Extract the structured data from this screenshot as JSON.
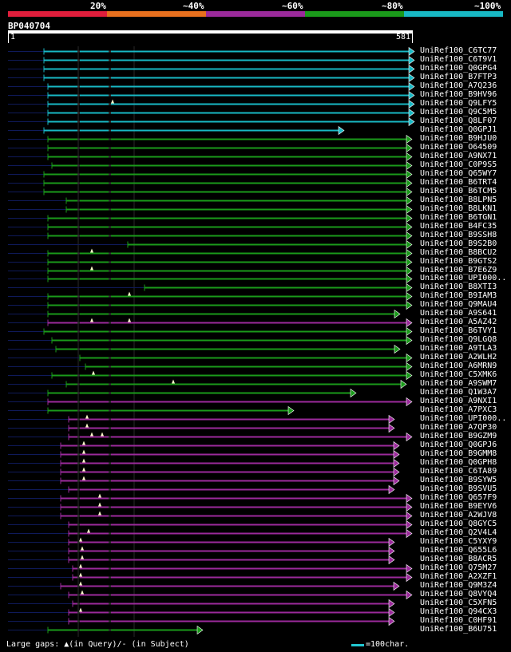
{
  "legend": {
    "labels": [
      "20%",
      "~40%",
      "~60%",
      "~80%",
      "~100%"
    ],
    "colors": [
      "#e01e3c",
      "#e8701e",
      "#9b2a9b",
      "#1a9a1a",
      "#18b8c4"
    ]
  },
  "query": {
    "id": "BP040704",
    "start": "1",
    "end": "581"
  },
  "hits": [
    {
      "label": "UniRef100_C6TC77",
      "color": "#18b8c4",
      "start": 55,
      "end": 513,
      "hasArrow": true,
      "marks": []
    },
    {
      "label": "UniRef100_C6T9V1",
      "color": "#18b8c4",
      "start": 55,
      "end": 513,
      "hasArrow": true,
      "marks": []
    },
    {
      "label": "UniRef100_Q0GPG4",
      "color": "#18b8c4",
      "start": 55,
      "end": 513,
      "hasArrow": true,
      "marks": []
    },
    {
      "label": "UniRef100_B7FTP3",
      "color": "#18b8c4",
      "start": 55,
      "end": 513,
      "hasArrow": true,
      "marks": []
    },
    {
      "label": "UniRef100_A7Q236",
      "color": "#18b8c4",
      "start": 60,
      "end": 513,
      "hasArrow": true,
      "marks": []
    },
    {
      "label": "UniRef100_B9HV96",
      "color": "#18b8c4",
      "start": 60,
      "end": 513,
      "hasArrow": true,
      "marks": []
    },
    {
      "label": "UniRef100_Q9LFY5",
      "color": "#18b8c4",
      "start": 60,
      "end": 513,
      "hasArrow": true,
      "marks": [
        141
      ]
    },
    {
      "label": "UniRef100_Q9C5M5",
      "color": "#18b8c4",
      "start": 60,
      "end": 513,
      "hasArrow": true,
      "marks": []
    },
    {
      "label": "UniRef100_Q8LF07",
      "color": "#18b8c4",
      "start": 60,
      "end": 513,
      "hasArrow": true,
      "marks": []
    },
    {
      "label": "UniRef100_Q0GPJ1",
      "color": "#18b8c4",
      "start": 55,
      "end": 425,
      "hasArrow": true,
      "marks": []
    },
    {
      "label": "UniRef100_B9HJU0",
      "color": "#1a9a1a",
      "start": 60,
      "end": 510,
      "hasArrow": true,
      "marks": []
    },
    {
      "label": "UniRef100_O64509",
      "color": "#1a9a1a",
      "start": 60,
      "end": 510,
      "hasArrow": true,
      "marks": []
    },
    {
      "label": "UniRef100_A9NX71",
      "color": "#1a9a1a",
      "start": 60,
      "end": 510,
      "hasArrow": true,
      "marks": []
    },
    {
      "label": "UniRef100_C0P9S5",
      "color": "#1a9a1a",
      "start": 65,
      "end": 510,
      "hasArrow": true,
      "marks": []
    },
    {
      "label": "UniRef100_Q65WY7",
      "color": "#1a9a1a",
      "start": 55,
      "end": 510,
      "hasArrow": true,
      "marks": []
    },
    {
      "label": "UniRef100_B6TRT4",
      "color": "#1a9a1a",
      "start": 55,
      "end": 510,
      "hasArrow": true,
      "marks": []
    },
    {
      "label": "UniRef100_B6TCM5",
      "color": "#1a9a1a",
      "start": 55,
      "end": 510,
      "hasArrow": true,
      "marks": []
    },
    {
      "label": "UniRef100_B8LPN5",
      "color": "#1a9a1a",
      "start": 83,
      "end": 510,
      "hasArrow": true,
      "marks": []
    },
    {
      "label": "UniRef100_B8LKN1",
      "color": "#1a9a1a",
      "start": 83,
      "end": 510,
      "hasArrow": true,
      "marks": []
    },
    {
      "label": "UniRef100_B6TGN1",
      "color": "#1a9a1a",
      "start": 60,
      "end": 510,
      "hasArrow": true,
      "marks": []
    },
    {
      "label": "UniRef100_B4FC35",
      "color": "#1a9a1a",
      "start": 60,
      "end": 510,
      "hasArrow": true,
      "marks": []
    },
    {
      "label": "UniRef100_B9SSH8",
      "color": "#1a9a1a",
      "start": 60,
      "end": 510,
      "hasArrow": true,
      "marks": []
    },
    {
      "label": "UniRef100_B9S2B0",
      "color": "#1a9a1a",
      "start": 160,
      "end": 510,
      "hasArrow": true,
      "marks": []
    },
    {
      "label": "UniRef100_B8BCU2",
      "color": "#1a9a1a",
      "start": 60,
      "end": 510,
      "hasArrow": true,
      "marks": [
        115
      ]
    },
    {
      "label": "UniRef100_B9GTS2",
      "color": "#1a9a1a",
      "start": 60,
      "end": 510,
      "hasArrow": true,
      "marks": []
    },
    {
      "label": "UniRef100_B7E6Z9",
      "color": "#1a9a1a",
      "start": 60,
      "end": 510,
      "hasArrow": true,
      "marks": [
        115
      ]
    },
    {
      "label": "UniRef100_UPI000..",
      "color": "#1a9a1a",
      "start": 60,
      "end": 510,
      "hasArrow": true,
      "marks": []
    },
    {
      "label": "UniRef100_B8XTI3",
      "color": "#1a9a1a",
      "start": 181,
      "end": 510,
      "hasArrow": true,
      "marks": []
    },
    {
      "label": "UniRef100_B9IAM3",
      "color": "#1a9a1a",
      "start": 60,
      "end": 510,
      "hasArrow": true,
      "marks": [
        162
      ]
    },
    {
      "label": "UniRef100_Q9MAU4",
      "color": "#1a9a1a",
      "start": 60,
      "end": 510,
      "hasArrow": true,
      "marks": []
    },
    {
      "label": "UniRef100_A9S641",
      "color": "#1a9a1a",
      "start": 60,
      "end": 495,
      "hasArrow": true,
      "marks": []
    },
    {
      "label": "UniRef100_A5AZ42",
      "color": "#9b2a9b",
      "start": 60,
      "end": 510,
      "hasArrow": true,
      "marks": [
        115,
        162
      ]
    },
    {
      "label": "UniRef100_B6TVY1",
      "color": "#1a9a1a",
      "start": 55,
      "end": 510,
      "hasArrow": true,
      "marks": []
    },
    {
      "label": "UniRef100_Q9LGQ8",
      "color": "#1a9a1a",
      "start": 65,
      "end": 510,
      "hasArrow": true,
      "marks": []
    },
    {
      "label": "UniRef100_A9TLA3",
      "color": "#1a9a1a",
      "start": 70,
      "end": 495,
      "hasArrow": true,
      "marks": []
    },
    {
      "label": "UniRef100_A2WLH2",
      "color": "#1a9a1a",
      "start": 100,
      "end": 510,
      "hasArrow": true,
      "marks": []
    },
    {
      "label": "UniRef100_A6MRN9",
      "color": "#1a9a1a",
      "start": 107,
      "end": 510,
      "hasArrow": true,
      "marks": []
    },
    {
      "label": "UniRef100_C5XMK6",
      "color": "#1a9a1a",
      "start": 65,
      "end": 510,
      "hasArrow": true,
      "marks": [
        117
      ]
    },
    {
      "label": "UniRef100_A9SWM7",
      "color": "#1a9a1a",
      "start": 83,
      "end": 503,
      "hasArrow": true,
      "marks": [
        217
      ]
    },
    {
      "label": "UniRef100_Q1W3A7",
      "color": "#1a9a1a",
      "start": 60,
      "end": 440,
      "hasArrow": true,
      "marks": []
    },
    {
      "label": "UniRef100_A9NXI1",
      "color": "#9b2a9b",
      "start": 60,
      "end": 510,
      "hasArrow": true,
      "marks": []
    },
    {
      "label": "UniRef100_A7PXC3",
      "color": "#1a9a1a",
      "start": 60,
      "end": 362,
      "hasArrow": true,
      "marks": []
    },
    {
      "label": "UniRef100_UPI000..",
      "color": "#9b2a9b",
      "start": 86,
      "end": 488,
      "hasArrow": true,
      "marks": [
        109
      ]
    },
    {
      "label": "UniRef100_A7QP30",
      "color": "#9b2a9b",
      "start": 86,
      "end": 488,
      "hasArrow": true,
      "marks": [
        109
      ]
    },
    {
      "label": "UniRef100_B9GZM9",
      "color": "#9b2a9b",
      "start": 86,
      "end": 510,
      "hasArrow": true,
      "marks": [
        115,
        128
      ]
    },
    {
      "label": "UniRef100_Q0GPJ6",
      "color": "#9b2a9b",
      "start": 76,
      "end": 494,
      "hasArrow": true,
      "marks": [
        105
      ]
    },
    {
      "label": "UniRef100_B9GMM8",
      "color": "#9b2a9b",
      "start": 76,
      "end": 494,
      "hasArrow": true,
      "marks": [
        105
      ]
    },
    {
      "label": "UniRef100_Q0GPH8",
      "color": "#9b2a9b",
      "start": 76,
      "end": 494,
      "hasArrow": true,
      "marks": [
        105
      ]
    },
    {
      "label": "UniRef100_C6TA89",
      "color": "#9b2a9b",
      "start": 76,
      "end": 494,
      "hasArrow": true,
      "marks": [
        105
      ]
    },
    {
      "label": "UniRef100_B9SYW5",
      "color": "#9b2a9b",
      "start": 76,
      "end": 494,
      "hasArrow": true,
      "marks": [
        105
      ]
    },
    {
      "label": "UniRef100_B9SVU5",
      "color": "#9b2a9b",
      "start": 86,
      "end": 488,
      "hasArrow": true,
      "marks": []
    },
    {
      "label": "UniRef100_Q657F9",
      "color": "#9b2a9b",
      "start": 76,
      "end": 510,
      "hasArrow": true,
      "marks": [
        125
      ]
    },
    {
      "label": "UniRef100_B9EYV6",
      "color": "#9b2a9b",
      "start": 76,
      "end": 510,
      "hasArrow": true,
      "marks": [
        125
      ]
    },
    {
      "label": "UniRef100_A2WJV8",
      "color": "#9b2a9b",
      "start": 76,
      "end": 510,
      "hasArrow": true,
      "marks": [
        125
      ]
    },
    {
      "label": "UniRef100_Q8GYC5",
      "color": "#9b2a9b",
      "start": 86,
      "end": 510,
      "hasArrow": true,
      "marks": []
    },
    {
      "label": "UniRef100_Q2V4L4",
      "color": "#9b2a9b",
      "start": 86,
      "end": 510,
      "hasArrow": true,
      "marks": [
        111
      ]
    },
    {
      "label": "UniRef100_C5YXY9",
      "color": "#9b2a9b",
      "start": 86,
      "end": 488,
      "hasArrow": true,
      "marks": [
        101
      ]
    },
    {
      "label": "UniRef100_Q655L6",
      "color": "#9b2a9b",
      "start": 86,
      "end": 488,
      "hasArrow": true,
      "marks": [
        103
      ]
    },
    {
      "label": "UniRef100_B8ACR5",
      "color": "#9b2a9b",
      "start": 86,
      "end": 488,
      "hasArrow": true,
      "marks": [
        103
      ]
    },
    {
      "label": "UniRef100_Q75M27",
      "color": "#9b2a9b",
      "start": 91,
      "end": 510,
      "hasArrow": true,
      "marks": [
        101
      ]
    },
    {
      "label": "UniRef100_A2XZF1",
      "color": "#9b2a9b",
      "start": 91,
      "end": 510,
      "hasArrow": true,
      "marks": [
        101
      ]
    },
    {
      "label": "UniRef100_Q9M3Z4",
      "color": "#9b2a9b",
      "start": 76,
      "end": 494,
      "hasArrow": true,
      "marks": [
        101
      ]
    },
    {
      "label": "UniRef100_Q8VYQ4",
      "color": "#9b2a9b",
      "start": 86,
      "end": 510,
      "hasArrow": true,
      "marks": [
        103
      ]
    },
    {
      "label": "UniRef100_C5XFN5",
      "color": "#9b2a9b",
      "start": 91,
      "end": 488,
      "hasArrow": true,
      "marks": []
    },
    {
      "label": "UniRef100_Q94CX3",
      "color": "#9b2a9b",
      "start": 86,
      "end": 488,
      "hasArrow": true,
      "marks": [
        101
      ]
    },
    {
      "label": "UniRef100_C0HF91",
      "color": "#9b2a9b",
      "start": 86,
      "end": 488,
      "hasArrow": true,
      "marks": []
    },
    {
      "label": "UniRef100_B6U751",
      "color": "#1a9a1a",
      "start": 60,
      "end": 248,
      "hasArrow": true,
      "marks": []
    }
  ],
  "footer": {
    "large_gaps_text": "Large gaps: ▲(in Query)/- (in Subject)",
    "scale_text": "=100char."
  }
}
